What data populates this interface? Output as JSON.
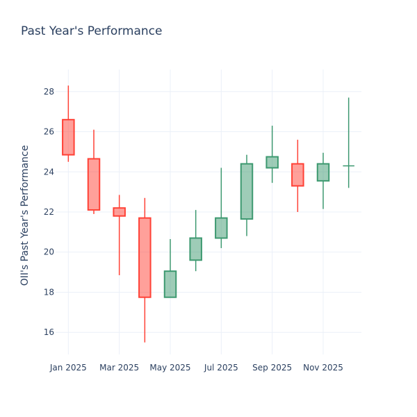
{
  "chart_data": {
    "type": "candlestick",
    "title": "Past Year's Performance",
    "xlabel": "",
    "ylabel": "OII's Past Year's Performance",
    "ylim": [
      14.9,
      29.1
    ],
    "y_ticks": [
      16,
      18,
      20,
      22,
      24,
      26,
      28
    ],
    "x_ticks": [
      {
        "label": "Jan 2025",
        "at": 0
      },
      {
        "label": "Mar 2025",
        "at": 2
      },
      {
        "label": "May 2025",
        "at": 4
      },
      {
        "label": "Jul 2025",
        "at": 6
      },
      {
        "label": "Sep 2025",
        "at": 8
      },
      {
        "label": "Nov 2025",
        "at": 10
      }
    ],
    "colors": {
      "increasing": "#3d9970",
      "decreasing": "#ff4136",
      "increasing_fill": "rgba(61,153,112,0.5)",
      "decreasing_fill": "rgba(255,65,54,0.5)"
    },
    "candles": [
      {
        "period": "Jan 2025",
        "open": 26.6,
        "high": 28.3,
        "low": 24.5,
        "close": 24.85
      },
      {
        "period": "Feb 2025",
        "open": 24.65,
        "high": 26.1,
        "low": 21.9,
        "close": 22.1
      },
      {
        "period": "Mar 2025",
        "open": 22.2,
        "high": 22.85,
        "low": 18.85,
        "close": 21.8
      },
      {
        "period": "Apr 2025",
        "open": 21.7,
        "high": 22.7,
        "low": 15.5,
        "close": 17.75
      },
      {
        "period": "May 2025",
        "open": 17.75,
        "high": 20.65,
        "low": 17.75,
        "close": 19.05
      },
      {
        "period": "Jun 2025",
        "open": 19.6,
        "high": 22.1,
        "low": 19.05,
        "close": 20.7
      },
      {
        "period": "Jul 2025",
        "open": 20.7,
        "high": 24.2,
        "low": 20.2,
        "close": 21.7
      },
      {
        "period": "Aug 2025",
        "open": 21.65,
        "high": 24.85,
        "low": 20.8,
        "close": 24.4
      },
      {
        "period": "Sep 2025",
        "open": 24.2,
        "high": 26.3,
        "low": 23.45,
        "close": 24.75
      },
      {
        "period": "Oct 2025",
        "open": 24.4,
        "high": 25.6,
        "low": 22.0,
        "close": 23.3
      },
      {
        "period": "Nov 2025",
        "open": 23.55,
        "high": 24.95,
        "low": 22.15,
        "close": 24.4
      },
      {
        "period": "Dec 2025",
        "open": 24.3,
        "high": 27.7,
        "low": 23.2,
        "close": 24.3
      }
    ]
  }
}
